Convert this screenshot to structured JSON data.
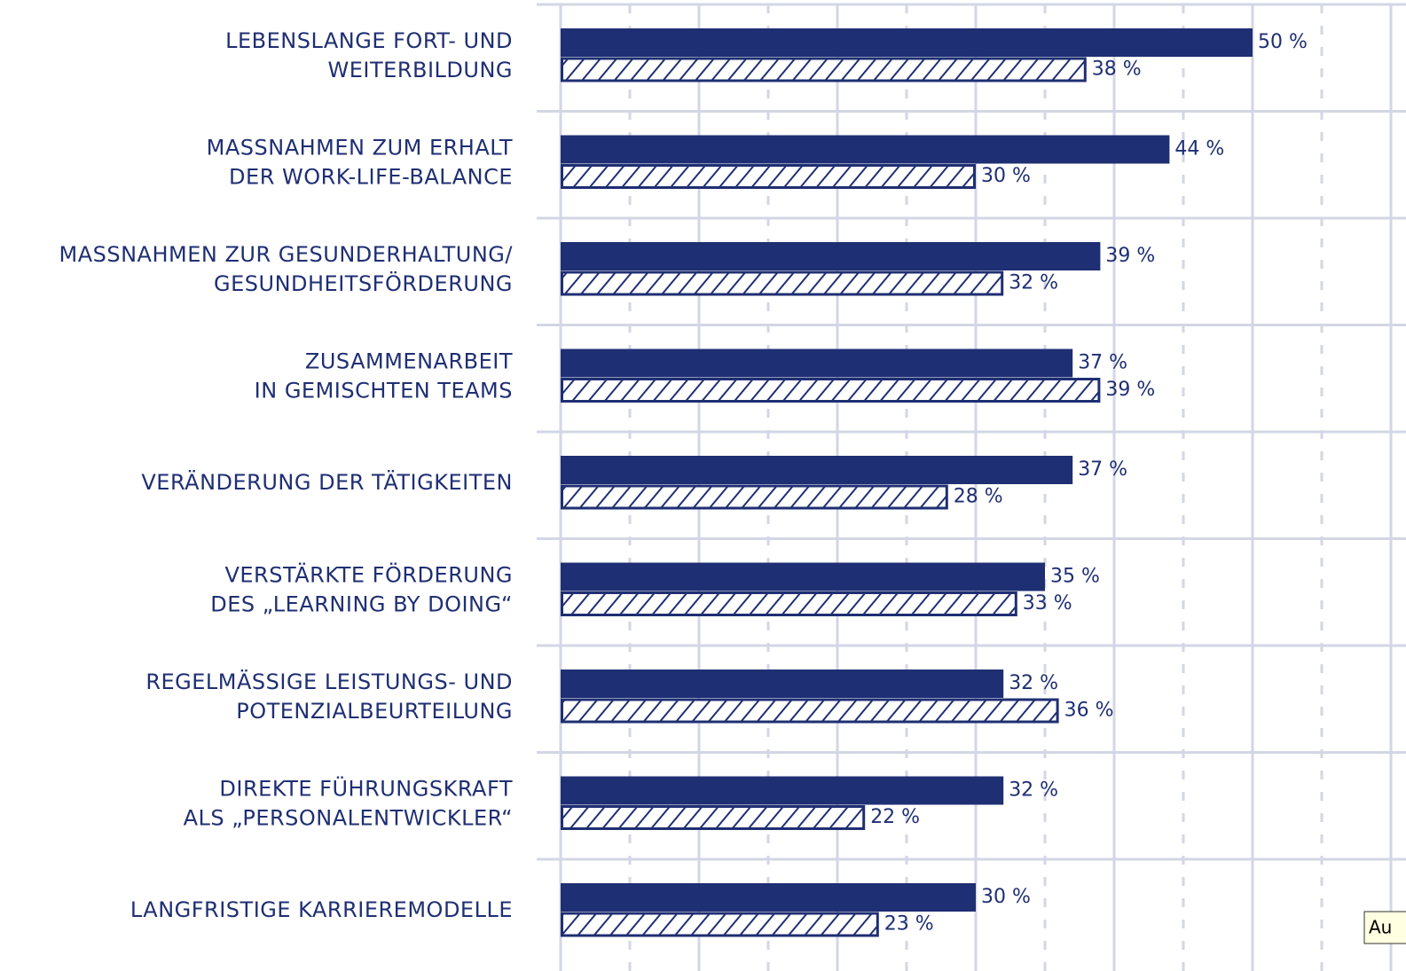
{
  "chart_data": {
    "type": "bar",
    "orientation": "horizontal",
    "categories": [
      [
        "LEBENSLANGE FORT- UND",
        "WEITERBILDUNG"
      ],
      [
        "MASSNAHMEN ZUM ERHALT",
        "DER WORK-LIFE-BALANCE"
      ],
      [
        "MASSNAHMEN ZUR GESUNDERHALTUNG/",
        "GESUNDHEITSFÖRDERUNG"
      ],
      [
        "ZUSAMMENARBEIT",
        "IN GEMISCHTEN TEAMS"
      ],
      [
        "VERÄNDERUNG DER TÄTIGKEITEN"
      ],
      [
        "VERSTÄRKTE FÖRDERUNG",
        "DES „LEARNING BY DOING“"
      ],
      [
        "REGELMÄSSIGE LEISTUNGS- UND",
        "POTENZIALBEURTEILUNG"
      ],
      [
        "DIREKTE FÜHRUNGSKRAFT",
        "ALS „PERSONALENTWICKLER“"
      ],
      [
        "LANGFRISTIGE KARRIEREMODELLE"
      ]
    ],
    "series": [
      {
        "color": "#1f2f73",
        "pattern": "solid",
        "values": [
          50,
          44,
          39,
          37,
          37,
          35,
          32,
          32,
          30
        ],
        "value_labels": [
          "50 %",
          "44 %",
          "39 %",
          "37 %",
          "37 %",
          "35 %",
          "32 %",
          "32 %",
          "30 %"
        ]
      },
      {
        "color": "#1f2f73",
        "pattern": "hatch",
        "values": [
          38,
          30,
          32,
          39,
          28,
          33,
          36,
          22,
          23
        ],
        "value_labels": [
          "38 %",
          "30 %",
          "32 %",
          "39 %",
          "28 %",
          "33 %",
          "36 %",
          "22 %",
          "23 %"
        ]
      }
    ],
    "xlim": [
      0,
      60
    ],
    "xticks": [
      0,
      10,
      20,
      30,
      40,
      50,
      60
    ],
    "xminorticks": [
      5,
      15,
      25,
      35,
      45,
      55
    ],
    "grid": true,
    "tooltip": "Au"
  }
}
